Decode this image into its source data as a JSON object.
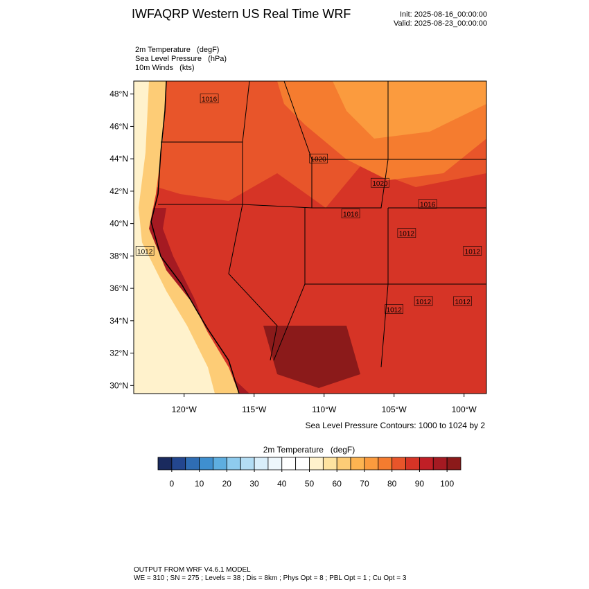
{
  "header": {
    "title": "IWFAQRP Western US Real Time WRF",
    "init": "Init: 2025-08-16_00:00:00",
    "valid": "Valid: 2025-08-23_00:00:00",
    "fields": [
      "2m Temperature   (degF)",
      "Sea Level Pressure   (hPa)",
      "10m Winds   (kts)"
    ]
  },
  "map": {
    "lon_lim": [
      -123.6,
      -98.4
    ],
    "lat_lim": [
      29.5,
      48.8
    ],
    "lat_ticks": [
      {
        "value": 30,
        "label": "30°N"
      },
      {
        "value": 32,
        "label": "32°N"
      },
      {
        "value": 34,
        "label": "34°N"
      },
      {
        "value": 36,
        "label": "36°N"
      },
      {
        "value": 38,
        "label": "38°N"
      },
      {
        "value": 40,
        "label": "40°N"
      },
      {
        "value": 42,
        "label": "42°N"
      },
      {
        "value": 44,
        "label": "44°N"
      },
      {
        "value": 46,
        "label": "46°N"
      },
      {
        "value": 48,
        "label": "48°N"
      }
    ],
    "lon_ticks": [
      {
        "value": -120,
        "label": "120°W"
      },
      {
        "value": -115,
        "label": "115°W"
      },
      {
        "value": -110,
        "label": "110°W"
      },
      {
        "value": -105,
        "label": "105°W"
      },
      {
        "value": -100,
        "label": "100°W"
      }
    ],
    "contour_labels": [
      {
        "label": "1012",
        "lon": -122.8,
        "lat": 38.3
      },
      {
        "label": "1016",
        "lon": -102.6,
        "lat": 41.2
      },
      {
        "label": "1020",
        "lon": -106.0,
        "lat": 42.5
      },
      {
        "label": "1012",
        "lon": -104.1,
        "lat": 39.4
      },
      {
        "label": "1012",
        "lon": -99.4,
        "lat": 38.3
      },
      {
        "label": "1012",
        "lon": -105.0,
        "lat": 34.7
      },
      {
        "label": "1012",
        "lon": -102.9,
        "lat": 35.2
      },
      {
        "label": "1012",
        "lon": -100.1,
        "lat": 35.2
      },
      {
        "label": "1016",
        "lon": -108.1,
        "lat": 40.6
      },
      {
        "label": "1020",
        "lon": -110.4,
        "lat": 44.0
      },
      {
        "label": "1016",
        "lon": -118.2,
        "lat": 47.7
      }
    ],
    "contour_note": "Sea Level Pressure Contours: 1000 to 1024 by 2"
  },
  "colorbar": {
    "title": "2m Temperature   (degF)",
    "lim": [
      -5,
      105
    ],
    "colors": [
      "#1a2a5e",
      "#23468f",
      "#2f6db4",
      "#3f8fcf",
      "#5eaee0",
      "#8ecbee",
      "#b3ddf4",
      "#d9eefa",
      "#eef7fc",
      "#ffffff",
      "#ffffff",
      "#fff2cc",
      "#fee3a0",
      "#fdcc76",
      "#fdb451",
      "#fb9b3e",
      "#f57c2f",
      "#e8552a",
      "#d63426",
      "#c01f26",
      "#a51a22",
      "#8b1a1a"
    ],
    "ticks": [
      0,
      10,
      20,
      30,
      40,
      50,
      60,
      70,
      80,
      90,
      100
    ]
  },
  "footer": [
    "OUTPUT FROM WRF V4.6.1 MODEL",
    "WE = 310 ; SN = 275 ; Levels = 38 ; Dis = 8km ; Phys Opt = 8 ; PBL Opt = 1 ; Cu Opt = 3"
  ]
}
